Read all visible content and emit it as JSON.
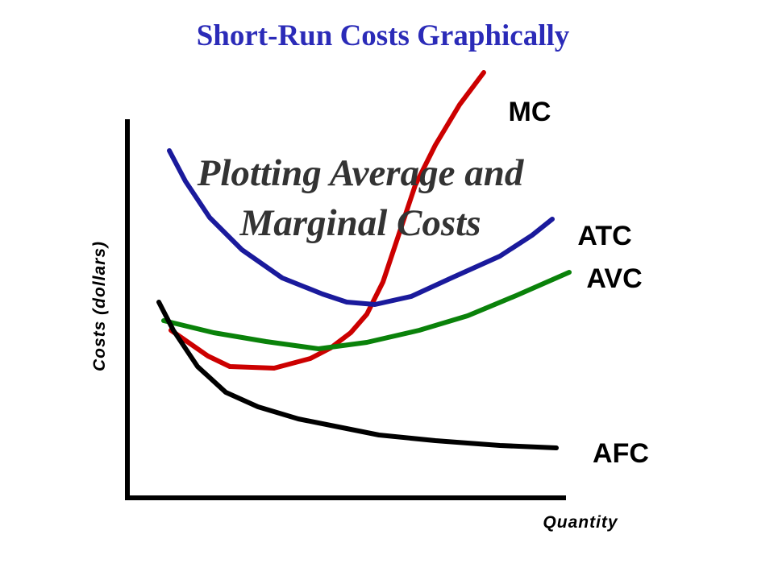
{
  "title": "Short-Run Costs Graphically",
  "subtitle": {
    "lines": [
      "Plotting Average and",
      "Marginal Costs"
    ]
  },
  "axes": {
    "y_label": "Costs (dollars)",
    "x_label": "Quantity"
  },
  "curves": [
    {
      "label": "MC"
    },
    {
      "label": "ATC"
    },
    {
      "label": "AVC"
    },
    {
      "label": "AFC"
    }
  ]
}
